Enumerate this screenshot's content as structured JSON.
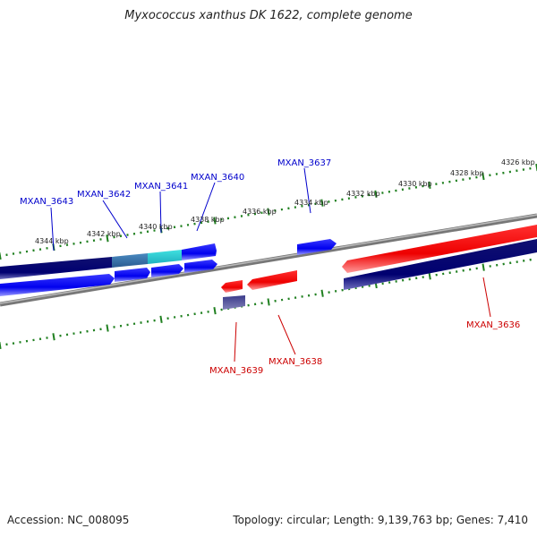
{
  "title": "Myxococcus xanthus DK 1622, complete genome",
  "footer": {
    "accession": "Accession: NC_008095",
    "summary": "Topology: circular; Length: 9,139,763 bp; Genes: 7,410"
  },
  "colors": {
    "forward_gene": "#0000ee",
    "forward_gene_dark": "#000080",
    "forward_gene_cyan": "#22cccc",
    "forward_gene_steel": "#3a7aaa",
    "reverse_gene": "#ee0000",
    "reverse_gene_dark": "#000080",
    "backbone": "#808080",
    "ticks": "#208020",
    "forward_label": "#0000cc",
    "reverse_label": "#cc0000"
  },
  "kbp_labels": [
    "4344 kbp",
    "4342 kbp",
    "4340 kbp",
    "4338 kbp",
    "4336 kbp",
    "4334 kbp",
    "4332 kbp",
    "4330 kbp",
    "4328 kbp",
    "4326 kbp"
  ],
  "gene_labels_top": [
    "MXAN_3643",
    "MXAN_3642",
    "MXAN_3641",
    "MXAN_3640",
    "MXAN_3637"
  ],
  "gene_labels_bottom": [
    "MXAN_3639",
    "MXAN_3638",
    "MXAN_3636"
  ]
}
